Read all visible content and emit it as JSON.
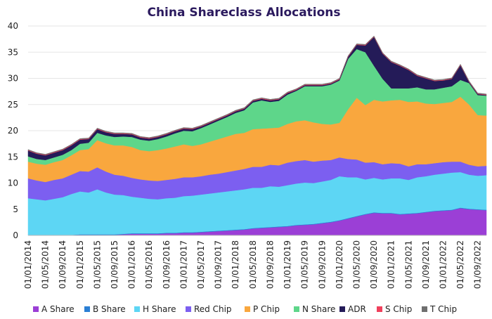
{
  "chart_data": {
    "type": "area",
    "title": "China Shareclass Allocations",
    "xlabel": "",
    "ylabel": "",
    "ylim": [
      0,
      40
    ],
    "y_ticks": [
      0,
      5,
      10,
      15,
      20,
      25,
      30,
      35,
      40
    ],
    "stacked": true,
    "grid": "horizontal",
    "legend_position": "bottom",
    "x_tick_labels": [
      "01/01/2014",
      "01/05/2014",
      "01/09/2014",
      "01/01/2015",
      "01/05/2015",
      "01/09/2015",
      "01/01/2016",
      "01/05/2016",
      "01/09/2016",
      "01/01/2017",
      "01/05/2017",
      "01/09/2017",
      "01/01/2018",
      "01/05/2018",
      "01/09/2018",
      "01/01/2019",
      "01/05/2019",
      "01/09/2019",
      "01/01/2020",
      "01/05/2020",
      "01/09/2020",
      "01/01/2021",
      "01/05/2021",
      "01/09/2021",
      "01/01/2022",
      "01/05/2022",
      "01/09/2022"
    ],
    "x": [
      "2014-01",
      "2014-03",
      "2014-05",
      "2014-07",
      "2014-09",
      "2014-11",
      "2015-01",
      "2015-03",
      "2015-05",
      "2015-07",
      "2015-09",
      "2015-11",
      "2016-01",
      "2016-03",
      "2016-05",
      "2016-07",
      "2016-09",
      "2016-11",
      "2017-01",
      "2017-03",
      "2017-05",
      "2017-07",
      "2017-09",
      "2017-11",
      "2018-01",
      "2018-03",
      "2018-05",
      "2018-07",
      "2018-09",
      "2018-11",
      "2019-01",
      "2019-03",
      "2019-05",
      "2019-07",
      "2019-09",
      "2019-11",
      "2020-01",
      "2020-03",
      "2020-05",
      "2020-07",
      "2020-09",
      "2020-11",
      "2021-01",
      "2021-03",
      "2021-05",
      "2021-07",
      "2021-09",
      "2021-11",
      "2022-01",
      "2022-03",
      "2022-05",
      "2022-07",
      "2022-09",
      "2022-11"
    ],
    "series": [
      {
        "name": "A Share",
        "color": "#9b3fd6",
        "values": [
          0,
          0,
          0,
          0,
          0,
          0,
          0.1,
          0.1,
          0.1,
          0.1,
          0.1,
          0.2,
          0.3,
          0.3,
          0.3,
          0.3,
          0.4,
          0.4,
          0.5,
          0.5,
          0.6,
          0.7,
          0.8,
          0.9,
          1.0,
          1.1,
          1.3,
          1.4,
          1.5,
          1.6,
          1.7,
          1.9,
          2.0,
          2.1,
          2.3,
          2.5,
          2.8,
          3.2,
          3.6,
          4.0,
          4.3,
          4.2,
          4.2,
          4.0,
          4.1,
          4.2,
          4.4,
          4.6,
          4.7,
          4.8,
          5.2,
          5.0,
          4.9,
          4.8
        ]
      },
      {
        "name": "B Share",
        "color": "#2a7fd4",
        "values": [
          0.1,
          0.1,
          0.1,
          0.1,
          0.1,
          0.1,
          0.1,
          0.1,
          0.1,
          0.1,
          0.1,
          0.1,
          0.1,
          0.1,
          0.1,
          0.1,
          0.1,
          0.1,
          0.1,
          0.1,
          0.1,
          0.1,
          0.1,
          0.1,
          0.1,
          0.1,
          0.1,
          0.1,
          0.1,
          0.1,
          0.1,
          0.1,
          0.1,
          0.1,
          0.1,
          0.1,
          0.1,
          0.1,
          0.1,
          0.1,
          0.1,
          0.1,
          0.1,
          0.1,
          0.1,
          0.1,
          0.1,
          0.1,
          0.1,
          0.1,
          0.1,
          0.1,
          0.1,
          0.1
        ]
      },
      {
        "name": "H Share",
        "color": "#5dd6f4",
        "values": [
          7.0,
          6.8,
          6.6,
          6.9,
          7.2,
          7.8,
          8.2,
          8.0,
          8.6,
          8.0,
          7.6,
          7.4,
          7.0,
          6.8,
          6.6,
          6.5,
          6.6,
          6.7,
          6.9,
          7.0,
          7.1,
          7.2,
          7.3,
          7.4,
          7.5,
          7.6,
          7.7,
          7.6,
          7.8,
          7.6,
          7.8,
          7.9,
          8.0,
          7.8,
          7.9,
          8.0,
          8.4,
          7.8,
          7.4,
          6.6,
          6.6,
          6.4,
          6.6,
          6.8,
          6.4,
          6.8,
          6.8,
          6.9,
          7.0,
          7.1,
          6.8,
          6.5,
          6.4,
          6.6
        ]
      },
      {
        "name": "Red Chip",
        "color": "#7c5ff0",
        "values": [
          3.8,
          3.6,
          3.5,
          3.6,
          3.6,
          3.7,
          3.9,
          4.0,
          4.2,
          4.0,
          3.8,
          3.7,
          3.6,
          3.5,
          3.5,
          3.5,
          3.5,
          3.6,
          3.6,
          3.5,
          3.5,
          3.6,
          3.6,
          3.7,
          3.8,
          3.9,
          4.0,
          4.0,
          4.1,
          4.1,
          4.3,
          4.3,
          4.3,
          4.1,
          4.0,
          3.8,
          3.6,
          3.5,
          3.4,
          3.2,
          3.0,
          2.9,
          2.9,
          2.8,
          2.6,
          2.5,
          2.3,
          2.2,
          2.2,
          2.1,
          2.0,
          1.9,
          1.8,
          1.8
        ]
      },
      {
        "name": "P Chip",
        "color": "#f9a73e",
        "values": [
          3.2,
          3.2,
          3.3,
          3.4,
          3.5,
          3.7,
          4.0,
          4.3,
          5.2,
          5.4,
          5.6,
          5.8,
          5.9,
          5.6,
          5.6,
          5.9,
          6.0,
          6.2,
          6.3,
          6.0,
          6.1,
          6.3,
          6.6,
          6.8,
          7.0,
          6.9,
          7.2,
          7.3,
          7.0,
          7.2,
          7.4,
          7.6,
          7.6,
          7.5,
          7.0,
          6.8,
          6.6,
          9.5,
          11.8,
          11.0,
          11.9,
          12.0,
          12.0,
          12.2,
          12.3,
          12.0,
          11.6,
          11.3,
          11.3,
          11.4,
          12.4,
          11.5,
          9.8,
          9.6
        ]
      },
      {
        "name": "N Share",
        "color": "#5ed68a",
        "values": [
          1.0,
          0.9,
          0.9,
          0.9,
          1.0,
          1.0,
          1.2,
          1.2,
          1.4,
          1.5,
          1.6,
          1.7,
          1.9,
          2.0,
          2.0,
          2.1,
          2.3,
          2.5,
          2.6,
          2.8,
          3.1,
          3.3,
          3.5,
          3.7,
          4.0,
          4.3,
          5.1,
          5.4,
          5.0,
          5.1,
          5.6,
          5.8,
          6.5,
          6.9,
          7.2,
          7.6,
          8.1,
          9.6,
          9.3,
          10.1,
          6.5,
          4.3,
          2.3,
          2.2,
          2.6,
          2.7,
          2.7,
          2.8,
          2.9,
          3.0,
          3.2,
          4.1,
          3.8,
          3.8
        ]
      },
      {
        "name": "ADR",
        "color": "#241b58",
        "values": [
          1.1,
          1.0,
          0.9,
          0.9,
          0.9,
          0.9,
          0.8,
          0.7,
          0.7,
          0.6,
          0.6,
          0.5,
          0.5,
          0.4,
          0.4,
          0.4,
          0.4,
          0.4,
          0.4,
          0.4,
          0.3,
          0.3,
          0.3,
          0.3,
          0.3,
          0.3,
          0.3,
          0.3,
          0.3,
          0.3,
          0.3,
          0.2,
          0.2,
          0.2,
          0.2,
          0.2,
          0.2,
          0.4,
          0.8,
          1.3,
          5.5,
          4.8,
          5.0,
          4.3,
          3.5,
          2.2,
          2.1,
          1.6,
          1.4,
          1.4,
          2.8,
          0.2,
          0.2,
          0.1
        ]
      },
      {
        "name": "S Chip",
        "color": "#f0405c",
        "values": [
          0.1,
          0.1,
          0.1,
          0.1,
          0.1,
          0.1,
          0.1,
          0.1,
          0.1,
          0.1,
          0.1,
          0.1,
          0.1,
          0.1,
          0.1,
          0.1,
          0.1,
          0.1,
          0.1,
          0.1,
          0.1,
          0.1,
          0.1,
          0.1,
          0.1,
          0.1,
          0.1,
          0.1,
          0.1,
          0.1,
          0.1,
          0.1,
          0.1,
          0.1,
          0.1,
          0.1,
          0.1,
          0.1,
          0.1,
          0.1,
          0.1,
          0.1,
          0.1,
          0.1,
          0.1,
          0.1,
          0.1,
          0.1,
          0.1,
          0.1,
          0.1,
          0.1,
          0.1,
          0.1
        ]
      },
      {
        "name": "T Chip",
        "color": "#6f6f6f",
        "values": [
          0.1,
          0.1,
          0.1,
          0.1,
          0.1,
          0.1,
          0.1,
          0.1,
          0.1,
          0.1,
          0.1,
          0.1,
          0.1,
          0.1,
          0.1,
          0.1,
          0.1,
          0.1,
          0.1,
          0.1,
          0.1,
          0.1,
          0.1,
          0.1,
          0.1,
          0.1,
          0.1,
          0.1,
          0.1,
          0.1,
          0.1,
          0.1,
          0.1,
          0.1,
          0.1,
          0.1,
          0.1,
          0.1,
          0.1,
          0.1,
          0.1,
          0.1,
          0.1,
          0.1,
          0.1,
          0.1,
          0.1,
          0.1,
          0.1,
          0.1,
          0.1,
          0.1,
          0.1,
          0.1
        ]
      }
    ]
  }
}
